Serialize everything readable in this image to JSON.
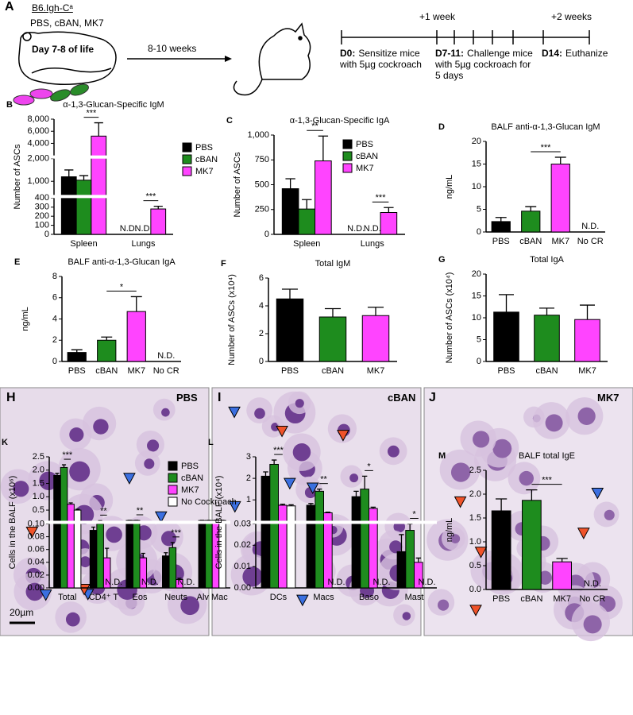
{
  "schematic": {
    "panel": "A",
    "strain": "B6.Igh-Cᵃ",
    "treatments": "PBS, cBAN, MK7",
    "age": "Day 7-8 of life",
    "interval": "8-10 weeks",
    "week_marks": [
      "+1 week",
      "+2 weeks"
    ],
    "events": [
      {
        "day": "D0:",
        "text": "Sensitize mice with 5µg cockroach"
      },
      {
        "day": "D7-11:",
        "text": "Challenge mice with 5µg cockroach for 5 days"
      },
      {
        "day": "D14:",
        "text": "Euthanize"
      }
    ]
  },
  "micrographs": [
    {
      "panel": "H",
      "label": "PBS",
      "scale_bar": "20µm"
    },
    {
      "panel": "I",
      "label": "cBAN"
    },
    {
      "panel": "J",
      "label": "MK7"
    }
  ],
  "chart_data": [
    {
      "panel": "B",
      "type": "bar",
      "title": "α-1,3-Glucan-Specific IgM",
      "ylabel": "Number of ASCs",
      "categories": [
        "Spleen",
        "Lungs"
      ],
      "series": [
        {
          "name": "PBS",
          "color": "#000000",
          "values": [
            1200,
            null
          ],
          "errors": [
            300,
            null
          ]
        },
        {
          "name": "cBAN",
          "color": "#1e8c1e",
          "values": [
            1050,
            null
          ],
          "errors": [
            200,
            null
          ]
        },
        {
          "name": "MK7",
          "color": "#ff44ff",
          "values": [
            5200,
            280
          ],
          "errors": [
            2200,
            30
          ]
        }
      ],
      "ylim": [
        0,
        8000
      ],
      "ysegments": [
        [
          0,
          400
        ],
        [
          400,
          2000
        ],
        [
          2000,
          8000
        ]
      ],
      "yticks": [
        0,
        100,
        200,
        300,
        400,
        {
          "value": 1000,
          "label": "1,000"
        },
        {
          "value": 2000,
          "label": "2,000"
        },
        {
          "value": 4000,
          "label": "4,000"
        },
        {
          "value": 6000,
          "label": "6,000"
        },
        {
          "value": 8000,
          "label": "8,000"
        }
      ],
      "legend": "right",
      "significance": [
        "***",
        "***"
      ],
      "nd_label": "N.D."
    },
    {
      "panel": "C",
      "type": "bar",
      "title": "α-1,3-Glucan-Specific IgA",
      "ylabel": "Number of ASCs",
      "categories": [
        "Spleen",
        "Lungs"
      ],
      "series": [
        {
          "name": "PBS",
          "color": "#000000",
          "values": [
            460,
            null
          ],
          "errors": [
            100,
            null
          ]
        },
        {
          "name": "cBAN",
          "color": "#1e8c1e",
          "values": [
            255,
            null
          ],
          "errors": [
            95,
            null
          ]
        },
        {
          "name": "MK7",
          "color": "#ff44ff",
          "values": [
            740,
            220
          ],
          "errors": [
            250,
            50
          ]
        }
      ],
      "ylim": [
        0,
        1000
      ],
      "yticks": [
        0,
        250,
        500,
        750,
        {
          "value": 1000,
          "label": "1,000"
        }
      ],
      "legend": "upper right",
      "significance": [
        "**",
        "***"
      ],
      "nd_label": "N.D."
    },
    {
      "panel": "D",
      "type": "bar",
      "title": "BALF anti-α-1,3-Glucan IgM",
      "ylabel": "ng/mL",
      "categories": [
        "PBS",
        "cBAN",
        "MK7",
        "No CR"
      ],
      "values": [
        2.3,
        4.6,
        15,
        null
      ],
      "errors": [
        0.9,
        1.0,
        1.5,
        null
      ],
      "colors": [
        "#000000",
        "#1e8c1e",
        "#ff44ff",
        "#ffffff"
      ],
      "ylim": [
        0,
        20
      ],
      "yticks": [
        0,
        5,
        10,
        15,
        20
      ],
      "significance": "***",
      "nd_label": "N.D."
    },
    {
      "panel": "E",
      "type": "bar",
      "title": "BALF anti-α-1,3-Glucan IgA",
      "ylabel": "ng/mL",
      "categories": [
        "PBS",
        "cBAN",
        "MK7",
        "No CR"
      ],
      "values": [
        0.85,
        2.0,
        4.7,
        null
      ],
      "errors": [
        0.25,
        0.3,
        1.4,
        null
      ],
      "colors": [
        "#000000",
        "#1e8c1e",
        "#ff44ff",
        "#ffffff"
      ],
      "ylim": [
        0,
        8
      ],
      "yticks": [
        0,
        2,
        4,
        6,
        8
      ],
      "significance": "*",
      "nd_label": "N.D."
    },
    {
      "panel": "F",
      "type": "bar",
      "title": "Total IgM",
      "ylabel": "Number of ASCs (x10⁴)",
      "categories": [
        "PBS",
        "cBAN",
        "MK7"
      ],
      "values": [
        4.5,
        3.2,
        3.3
      ],
      "errors": [
        0.7,
        0.6,
        0.6
      ],
      "colors": [
        "#000000",
        "#1e8c1e",
        "#ff44ff"
      ],
      "ylim": [
        0,
        6
      ],
      "yticks": [
        0,
        2,
        4,
        6
      ]
    },
    {
      "panel": "G",
      "type": "bar",
      "title": "Total IgA",
      "ylabel": "Number of ASCs (x10⁴)",
      "categories": [
        "PBS",
        "cBAN",
        "MK7"
      ],
      "values": [
        11.3,
        10.6,
        9.6
      ],
      "errors": [
        4.0,
        1.6,
        3.3
      ],
      "colors": [
        "#000000",
        "#1e8c1e",
        "#ff44ff"
      ],
      "ylim": [
        0,
        20
      ],
      "yticks": [
        0,
        5,
        10,
        15,
        20
      ]
    },
    {
      "panel": "K",
      "type": "bar",
      "ylabel": "Cells in the BALF (x10⁶)",
      "categories": [
        "Total",
        "CD4⁺ T",
        "Eos",
        "Neuts",
        "Alv Mac"
      ],
      "series": [
        {
          "name": "PBS",
          "color": "#000000",
          "values": [
            1.8,
            0.09,
            0.11,
            0.05,
            0.11
          ],
          "errors": [
            0.08,
            0.005,
            0.005,
            0.005,
            0.005
          ]
        },
        {
          "name": "cBAN",
          "color": "#1e8c1e",
          "values": [
            2.1,
            0.1,
            0.11,
            0.063,
            0.11
          ],
          "errors": [
            0.1,
            0.003,
            0.005,
            0.008,
            0.005
          ]
        },
        {
          "name": "MK7",
          "color": "#ff44ff",
          "values": [
            0.72,
            0.047,
            0.047,
            0.013,
            0.11
          ],
          "errors": [
            0.05,
            0.015,
            0.007,
            0.002,
            0.005
          ]
        },
        {
          "name": "No Cockroach",
          "color": "#ffffff",
          "values": [
            0.5,
            null,
            null,
            null,
            0.11
          ],
          "errors": [
            0.03,
            null,
            null,
            null,
            0.005
          ]
        }
      ],
      "ylim": [
        0,
        2.5
      ],
      "ysegments": [
        [
          0,
          0.1
        ],
        [
          0.1,
          2.5
        ]
      ],
      "yticks": [
        {
          "value": 0,
          "label": "0.00"
        },
        0.02,
        0.04,
        0.06,
        0.08,
        {
          "value": 0.1,
          "label": "0.10"
        },
        0.5,
        {
          "value": 1,
          "label": "1.0"
        },
        1.5,
        {
          "value": 2,
          "label": "2.0"
        },
        2.5
      ],
      "legend": "upper right",
      "significance": [
        "***",
        "**",
        "**",
        "***",
        null
      ],
      "nd_label": "N.D."
    },
    {
      "panel": "L",
      "type": "bar",
      "ylabel": "Cells in the BALF (x10⁴)",
      "categories": [
        "DCs",
        "Macs",
        "Baso",
        "Mast"
      ],
      "series": [
        {
          "color": "#000000",
          "values": [
            2.1,
            0.75,
            1.15,
            0.017
          ],
          "errors": [
            0.2,
            0.08,
            0.25,
            0.008
          ]
        },
        {
          "color": "#1e8c1e",
          "values": [
            2.65,
            1.4,
            1.5,
            0.027
          ],
          "errors": [
            0.2,
            0.1,
            0.6,
            0.003
          ]
        },
        {
          "color": "#ff44ff",
          "values": [
            0.75,
            0.4,
            0.6,
            0.012
          ],
          "errors": [
            0.05,
            0.03,
            0.06,
            0.002
          ]
        },
        {
          "color": "#ffffff",
          "values": [
            0.72,
            null,
            null,
            null
          ],
          "errors": [
            0.05,
            null,
            null,
            null
          ]
        }
      ],
      "ylim": [
        0,
        3
      ],
      "ysegments": [
        [
          0,
          0.03
        ],
        [
          0.03,
          3
        ]
      ],
      "yticks": [
        {
          "value": 0,
          "label": "0.00"
        },
        0.01,
        0.02,
        0.03,
        1,
        2,
        3
      ],
      "significance": [
        "***",
        "**",
        "*",
        "*"
      ],
      "nd_label": "N.D."
    },
    {
      "panel": "M",
      "type": "bar",
      "title": "BALF total IgE",
      "ylabel": "ng/mL",
      "categories": [
        "PBS",
        "cBAN",
        "MK7",
        "No CR"
      ],
      "values": [
        1.65,
        1.87,
        0.58,
        null
      ],
      "errors": [
        0.25,
        0.22,
        0.07,
        null
      ],
      "colors": [
        "#000000",
        "#1e8c1e",
        "#ff44ff",
        "#ffffff"
      ],
      "ylim": [
        0,
        2.5
      ],
      "yticks": [
        {
          "value": 0,
          "label": "0.0"
        },
        0.5,
        {
          "value": 1,
          "label": "1.0"
        },
        1.5,
        {
          "value": 2,
          "label": "2.0"
        },
        2.5
      ],
      "significance": "***",
      "nd_label": "N.D."
    }
  ]
}
